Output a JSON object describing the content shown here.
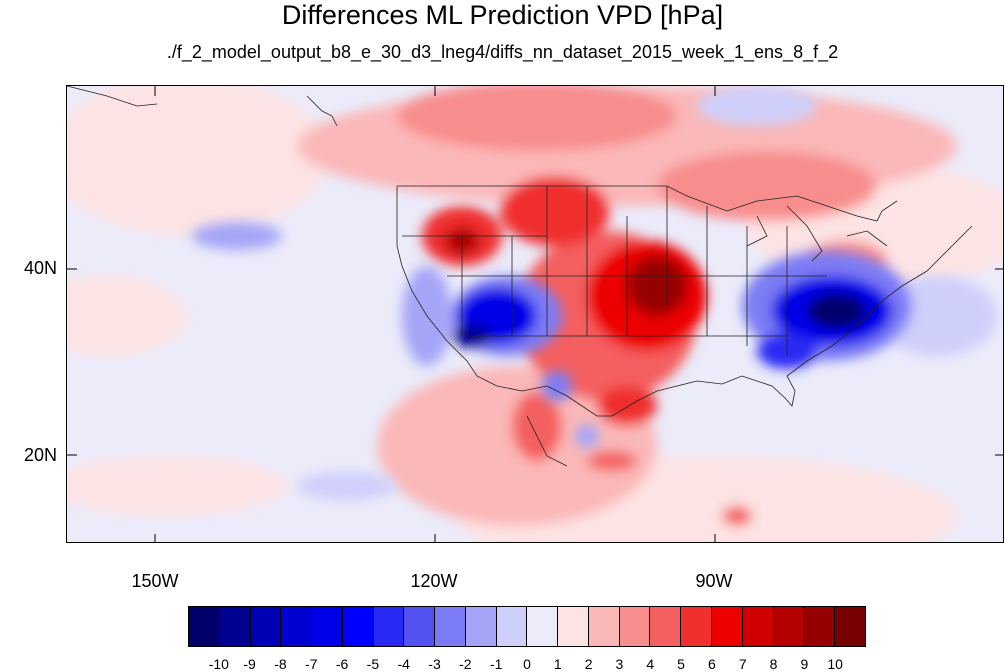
{
  "title": "Differences ML Prediction VPD [hPa]",
  "subtitle": "./f_2_model_output_b8_e_30_d3_lneg4/diffs_nn_dataset_2015_week_1_ens_8_f_2",
  "lat_labels": [
    "40N",
    "20N"
  ],
  "lon_labels": [
    "150W",
    "120W",
    "90W"
  ],
  "colorbar": {
    "colors": [
      "#00006b",
      "#000093",
      "#0000b4",
      "#0000d0",
      "#0000e8",
      "#0000ff",
      "#2929f4",
      "#5252f0",
      "#7b7bf5",
      "#a5a5f8",
      "#cfcffb",
      "#ebebfa",
      "#fde3e3",
      "#fbb8b8",
      "#f88d8d",
      "#f45f5f",
      "#f02f2f",
      "#ec0000",
      "#d00000",
      "#b40000",
      "#950000",
      "#770000"
    ],
    "labels": [
      "-10",
      "-9",
      "-8",
      "-7",
      "-6",
      "-5",
      "-4",
      "-3",
      "-2",
      "-1",
      "0",
      "1",
      "2",
      "3",
      "4",
      "5",
      "6",
      "7",
      "8",
      "9",
      "10"
    ]
  }
}
